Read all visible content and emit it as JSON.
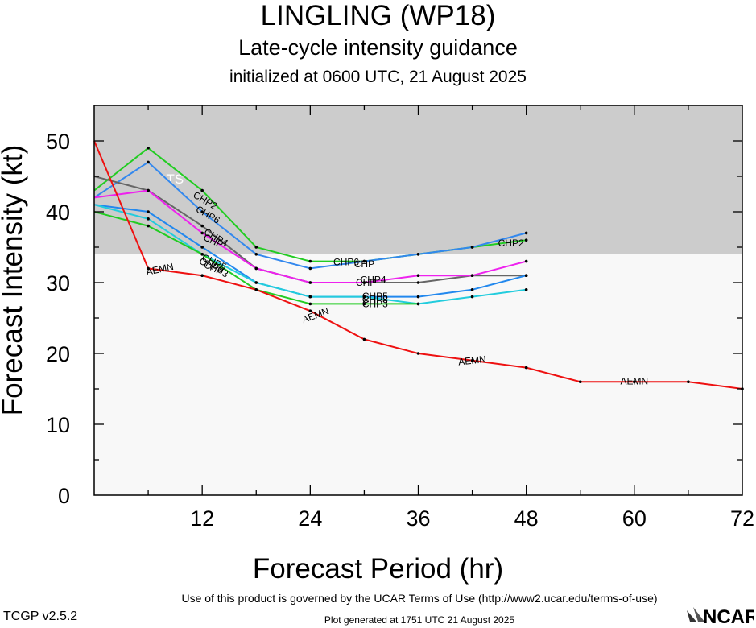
{
  "header": {
    "title": "LINGLING (WP18)",
    "subtitle": "Late-cycle intensity guidance",
    "initialized": "initialized at 0600 UTC, 21 August 2025"
  },
  "footer": {
    "version": "TCGP v2.5.2",
    "terms": "Use of this product is governed by the UCAR Terms of Use (http://www2.ucar.edu/terms-of-use)",
    "generated": "Plot generated at 1751 UTC   21 August 2025",
    "logo_text": "NCAR"
  },
  "chart_data": {
    "type": "line",
    "xlabel": "Forecast Period (hr)",
    "ylabel": "Forecast Intensity (kt)",
    "xlim": [
      0,
      72
    ],
    "ylim": [
      0,
      55
    ],
    "xticks": [
      12,
      24,
      36,
      48,
      60,
      72
    ],
    "yticks": [
      0,
      10,
      20,
      30,
      40,
      50
    ],
    "shaded_band": {
      "label": "TS",
      "from": 34,
      "to": 55,
      "color": "#cccccc"
    },
    "background_color": "#f8f8f8",
    "series": [
      {
        "name": "CHP2",
        "color": "#22cc22",
        "x": [
          0,
          6,
          12,
          18,
          24,
          30,
          36,
          42,
          48
        ],
        "y": [
          43,
          49,
          43,
          35,
          33,
          33,
          34,
          35,
          36
        ],
        "labels": [
          {
            "x": 12.3,
            "y": 41.5,
            "angle": 30
          },
          {
            "x": 46.3,
            "y": 35.5,
            "angle": 0
          }
        ]
      },
      {
        "name": "CHP6",
        "color": "#3388ee",
        "x": [
          0,
          6,
          12,
          18,
          24,
          30,
          36,
          42,
          48
        ],
        "y": [
          42,
          47,
          40,
          34,
          32,
          33,
          34,
          35,
          37
        ],
        "labels": [
          {
            "x": 12.6,
            "y": 39.5,
            "angle": 30
          },
          {
            "x": 28.0,
            "y": 32.8,
            "angle": 0
          }
        ]
      },
      {
        "name": "CHP",
        "color": "#666666",
        "x": [
          0,
          6,
          12,
          18,
          24,
          30,
          36,
          42,
          48
        ],
        "y": [
          45,
          43,
          38,
          32,
          30,
          30,
          30,
          31,
          31
        ],
        "labels": [
          {
            "x": 13.2,
            "y": 35.8,
            "angle": 25
          },
          {
            "x": 30.0,
            "y": 32.5,
            "angle": 0
          },
          {
            "x": 30.2,
            "y": 29.9,
            "angle": 0
          }
        ]
      },
      {
        "name": "CHP4",
        "color": "#ee22ee",
        "x": [
          0,
          6,
          12,
          18,
          24,
          30,
          36,
          42,
          48
        ],
        "y": [
          42,
          43,
          37,
          32,
          30,
          30,
          31,
          31,
          33
        ],
        "labels": [
          {
            "x": 13.5,
            "y": 36.3,
            "angle": 30
          },
          {
            "x": 31.0,
            "y": 30.3,
            "angle": 0
          }
        ]
      },
      {
        "name": "CHP5",
        "color": "#2288ee",
        "x": [
          0,
          6,
          12,
          18,
          24,
          30,
          36,
          42,
          48
        ],
        "y": [
          41,
          40,
          35,
          30,
          28,
          28,
          28,
          29,
          31
        ],
        "labels": [
          {
            "x": 13.3,
            "y": 32.8,
            "angle": 25
          },
          {
            "x": 31.2,
            "y": 28.0,
            "angle": 0
          }
        ]
      },
      {
        "name": "CHP8",
        "color": "#22ccdd",
        "x": [
          0,
          6,
          12,
          18,
          24,
          30,
          36,
          42,
          48
        ],
        "y": [
          41,
          39,
          34,
          30,
          28,
          28,
          27,
          28,
          29
        ],
        "labels": [
          {
            "x": 13.0,
            "y": 32.3,
            "angle": 25
          },
          {
            "x": 31.2,
            "y": 27.5,
            "angle": 0
          }
        ]
      },
      {
        "name": "CHP3",
        "color": "#22cc22",
        "x": [
          0,
          6,
          12,
          18,
          24,
          30,
          36
        ],
        "y": [
          40,
          38,
          34,
          29,
          27,
          27,
          27
        ],
        "labels": [
          {
            "x": 13.5,
            "y": 31.8,
            "angle": 25
          },
          {
            "x": 31.2,
            "y": 26.9,
            "angle": 0
          }
        ]
      },
      {
        "name": "AEMN",
        "color": "#ee1111",
        "x": [
          0,
          6,
          12,
          18,
          24,
          30,
          36,
          42,
          48,
          54,
          60,
          66,
          72
        ],
        "y": [
          50,
          32,
          31,
          29,
          26,
          22,
          20,
          19,
          18,
          16,
          16,
          16,
          15
        ],
        "labels": [
          {
            "x": 7.3,
            "y": 31.8,
            "angle": -12
          },
          {
            "x": 24.6,
            "y": 25.3,
            "angle": -20
          },
          {
            "x": 42.0,
            "y": 18.9,
            "angle": -6
          },
          {
            "x": 60.0,
            "y": 16.0,
            "angle": 0
          }
        ]
      }
    ]
  }
}
